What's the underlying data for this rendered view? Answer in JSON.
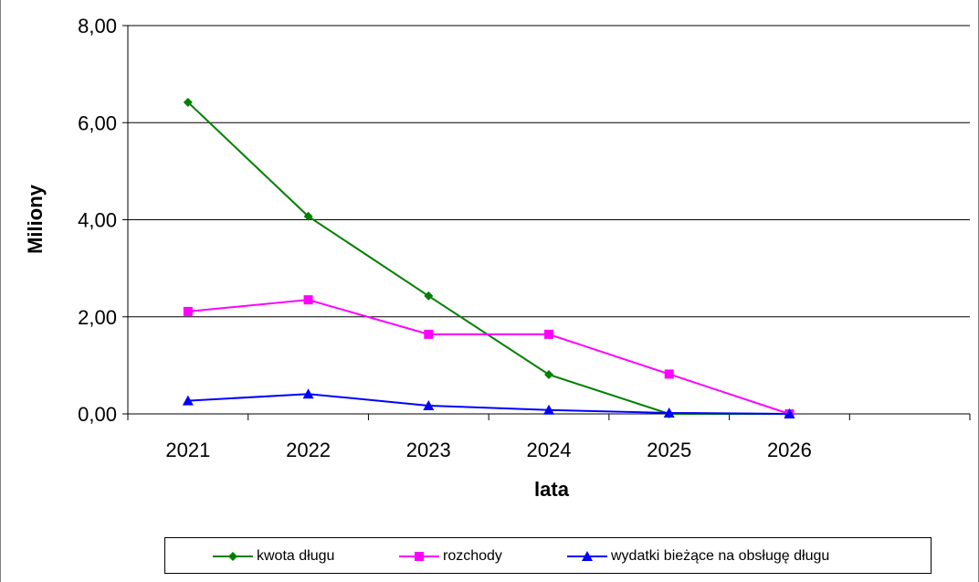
{
  "chart_data": {
    "type": "line",
    "categories": [
      "2021",
      "2022",
      "2023",
      "2024",
      "2025",
      "2026"
    ],
    "series": [
      {
        "name": "kwota długu",
        "values": [
          6.42,
          4.07,
          2.43,
          0.81,
          0.0,
          0.0
        ],
        "color": "#008000",
        "marker": "diamond"
      },
      {
        "name": "rozchody",
        "values": [
          2.11,
          2.35,
          1.64,
          1.64,
          0.82,
          0.0
        ],
        "color": "#ff00ff",
        "marker": "square"
      },
      {
        "name": "wydatki bieżące na obsługę długu",
        "values": [
          0.27,
          0.41,
          0.17,
          0.08,
          0.02,
          0.0
        ],
        "color": "#0000ff",
        "marker": "triangle"
      }
    ],
    "xlabel": "lata",
    "ylabel": "Miliony",
    "ylim": [
      0,
      8
    ],
    "yticks": [
      "0,00",
      "2,00",
      "4,00",
      "6,00",
      "8,00"
    ],
    "ytick_values": [
      0,
      2,
      4,
      6,
      8
    ],
    "grid": true,
    "legend_position": "bottom"
  }
}
